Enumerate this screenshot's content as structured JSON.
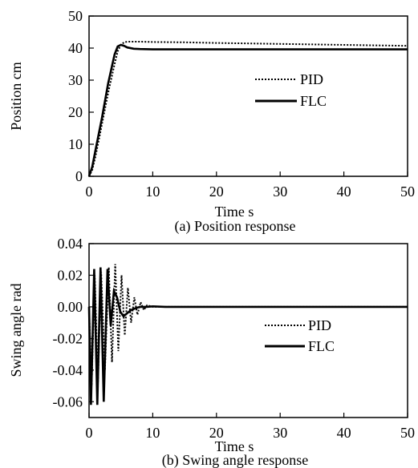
{
  "chart_data": [
    {
      "type": "line",
      "caption": "(a) Position response",
      "xlabel": "Time s",
      "ylabel": "Position cm",
      "xlim": [
        0,
        50
      ],
      "ylim": [
        0,
        50
      ],
      "xticks": [
        "0",
        "10",
        "20",
        "30",
        "40",
        "50"
      ],
      "yticks": [
        "0",
        "10",
        "20",
        "30",
        "40",
        "50"
      ],
      "grid": false,
      "legend_placement": "center-right",
      "series": [
        {
          "name": "PID",
          "style": "dotted",
          "x": [
            0,
            0.5,
            1,
            2,
            3,
            4,
            4.5,
            5,
            5.5,
            6,
            7,
            8,
            10,
            15,
            20,
            30,
            40,
            50
          ],
          "y": [
            0,
            2,
            6,
            16,
            26,
            35,
            39,
            41,
            41.8,
            42,
            42,
            42,
            41.9,
            41.8,
            41.6,
            41.3,
            41,
            40.7
          ]
        },
        {
          "name": "FLC",
          "style": "solid",
          "x": [
            0,
            0.5,
            1,
            2,
            3,
            4,
            4.5,
            5,
            5.5,
            6,
            7,
            8,
            10,
            15,
            20,
            30,
            40,
            50
          ],
          "y": [
            0,
            3,
            8,
            18,
            29,
            38,
            40.5,
            41,
            40.7,
            40.2,
            39.8,
            39.7,
            39.6,
            39.6,
            39.6,
            39.6,
            39.6,
            39.6
          ]
        }
      ]
    },
    {
      "type": "line",
      "caption": "(b) Swing angle response",
      "xlabel": "Time s",
      "ylabel": "Swing angle rad",
      "xlim": [
        0,
        50
      ],
      "ylim": [
        -0.07,
        0.04
      ],
      "xticks": [
        "0",
        "10",
        "20",
        "30",
        "40",
        "50"
      ],
      "yticks": [
        "0.04",
        "0.02",
        "0.00",
        "-0.02",
        "-0.04",
        "-0.06"
      ],
      "grid": false,
      "legend_placement": "center-right",
      "series": [
        {
          "name": "PID",
          "style": "dotted",
          "x": [
            0,
            0.4,
            0.9,
            1.4,
            1.9,
            2.5,
            3.1,
            3.6,
            4.1,
            4.6,
            5.1,
            5.6,
            6.1,
            6.6,
            7.1,
            7.6,
            8.1,
            8.6,
            9.1,
            10,
            12,
            20,
            30,
            40,
            50
          ],
          "y": [
            0,
            -0.05,
            0.02,
            -0.048,
            0.022,
            -0.04,
            0.025,
            -0.035,
            0.027,
            -0.028,
            0.02,
            -0.018,
            0.012,
            -0.01,
            0.006,
            -0.005,
            0.003,
            -0.002,
            0.001,
            0,
            0,
            0,
            0,
            0,
            0
          ]
        },
        {
          "name": "FLC",
          "style": "solid",
          "x": [
            0,
            0.3,
            0.8,
            1.3,
            1.8,
            2.3,
            2.9,
            3.4,
            3.9,
            4.4,
            4.9,
            5.4,
            6.0,
            6.6,
            7.2,
            8,
            9,
            10,
            12,
            20,
            30,
            40,
            50
          ],
          "y": [
            0,
            -0.062,
            0.024,
            -0.062,
            0.025,
            -0.06,
            0.024,
            -0.012,
            0.01,
            0.006,
            -0.003,
            -0.006,
            -0.004,
            -0.002,
            -0.001,
            0,
            0,
            0.0003,
            0,
            0,
            0,
            0,
            0
          ]
        }
      ]
    }
  ]
}
